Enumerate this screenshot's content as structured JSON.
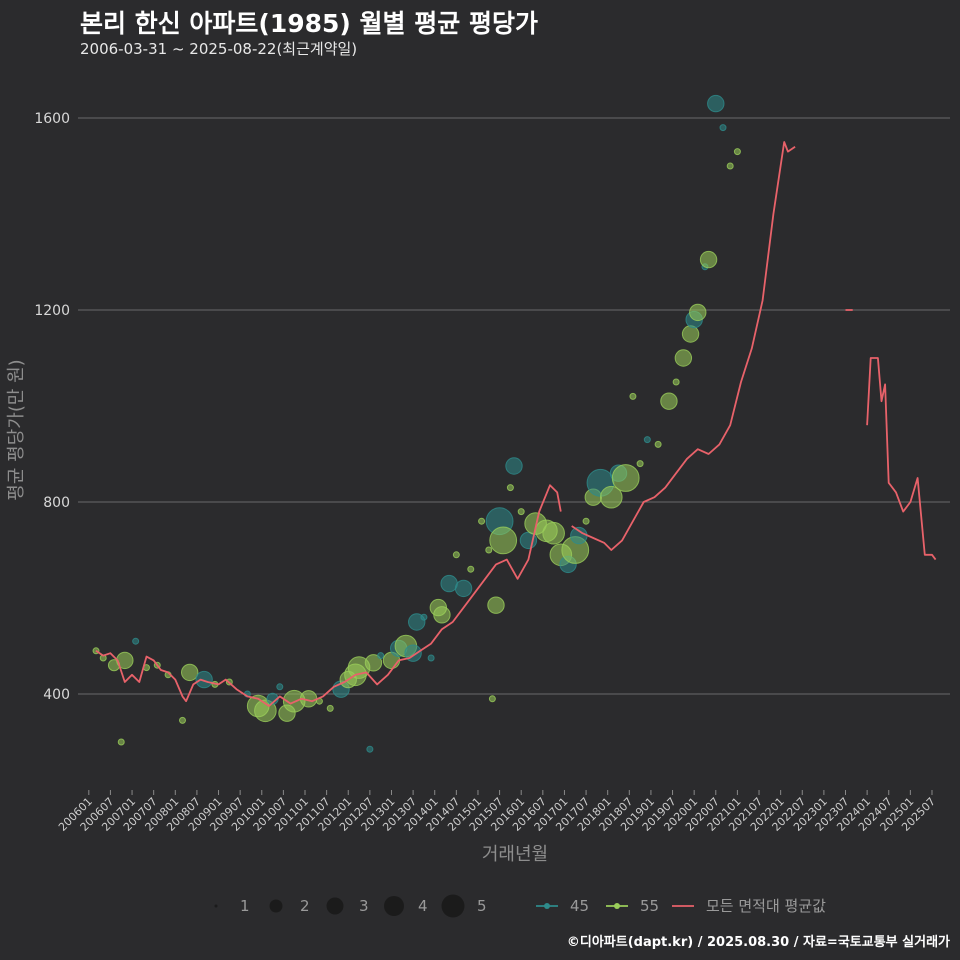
{
  "title": "본리 한신 아파트(1985) 월별 평균 평당가",
  "subtitle": "2006-03-31 ~ 2025-08-22(최근계약일)",
  "footer": "©디아파트(dapt.kr) / 2025.08.30 / 자료=국토교통부 실거래가",
  "colors": {
    "background": "#2b2b2d",
    "grid": "#6a6a6a",
    "series_45": "#2e8b8b",
    "series_55": "#9acd5a",
    "series_avg": "#e8626a"
  },
  "chart_data": {
    "type": "scatter+line",
    "xlabel": "거래년월",
    "ylabel": "평균 평당가(만 원)",
    "ylim": [
      200,
      1700
    ],
    "yticks": [
      400,
      800,
      1200,
      1600
    ],
    "xlim": [
      "2005-10",
      "2025-12"
    ],
    "x_tick_labels": [
      "200601",
      "200607",
      "200701",
      "200707",
      "200801",
      "200807",
      "200901",
      "200907",
      "201001",
      "201007",
      "201101",
      "201107",
      "201201",
      "201207",
      "201301",
      "201307",
      "201401",
      "201407",
      "201501",
      "201507",
      "201601",
      "201607",
      "201701",
      "201707",
      "201801",
      "201807",
      "201901",
      "201907",
      "202001",
      "202007",
      "202101",
      "202107",
      "202201",
      "202207",
      "202301",
      "202307",
      "202401",
      "202407",
      "202501",
      "202507"
    ],
    "legend": {
      "size_title": "",
      "size_labels": [
        "1",
        "2",
        "3",
        "4",
        "5"
      ],
      "series_labels": [
        "45",
        "55",
        "모든 면적대 평균값"
      ]
    },
    "avg_line": [
      {
        "x": "2006-03",
        "y": 490
      },
      {
        "x": "2006-05",
        "y": 480
      },
      {
        "x": "2006-07",
        "y": 485
      },
      {
        "x": "2006-09",
        "y": 470
      },
      {
        "x": "2006-11",
        "y": 425
      },
      {
        "x": "2007-01",
        "y": 440
      },
      {
        "x": "2007-03",
        "y": 425
      },
      {
        "x": "2007-05",
        "y": 478
      },
      {
        "x": "2007-07",
        "y": 470
      },
      {
        "x": "2007-09",
        "y": 450
      },
      {
        "x": "2007-11",
        "y": 445
      },
      {
        "x": "2008-01",
        "y": 430
      },
      {
        "x": "2008-03",
        "y": 395
      },
      {
        "x": "2008-04",
        "y": 385
      },
      {
        "x": "2008-06",
        "y": 420
      },
      {
        "x": "2008-08",
        "y": 430
      },
      {
        "x": "2008-10",
        "y": 425
      },
      {
        "x": "2009-01",
        "y": 420
      },
      {
        "x": "2009-03",
        "y": 430
      },
      {
        "x": "2009-06",
        "y": 410
      },
      {
        "x": "2009-09",
        "y": 395
      },
      {
        "x": "2009-12",
        "y": 390
      },
      {
        "x": "2010-03",
        "y": 375
      },
      {
        "x": "2010-06",
        "y": 395
      },
      {
        "x": "2010-09",
        "y": 380
      },
      {
        "x": "2010-12",
        "y": 390
      },
      {
        "x": "2011-03",
        "y": 385
      },
      {
        "x": "2011-06",
        "y": 395
      },
      {
        "x": "2011-09",
        "y": 415
      },
      {
        "x": "2011-12",
        "y": 425
      },
      {
        "x": "2012-03",
        "y": 440
      },
      {
        "x": "2012-06",
        "y": 445
      },
      {
        "x": "2012-09",
        "y": 420
      },
      {
        "x": "2012-12",
        "y": 440
      },
      {
        "x": "2013-03",
        "y": 470
      },
      {
        "x": "2013-06",
        "y": 475
      },
      {
        "x": "2013-09",
        "y": 490
      },
      {
        "x": "2013-12",
        "y": 505
      },
      {
        "x": "2014-03",
        "y": 535
      },
      {
        "x": "2014-06",
        "y": 550
      },
      {
        "x": "2014-09",
        "y": 580
      },
      {
        "x": "2014-12",
        "y": 610
      },
      {
        "x": "2015-03",
        "y": 640
      },
      {
        "x": "2015-06",
        "y": 670
      },
      {
        "x": "2015-09",
        "y": 680
      },
      {
        "x": "2015-12",
        "y": 640
      },
      {
        "x": "2016-03",
        "y": 680
      },
      {
        "x": "2016-06",
        "y": 780
      },
      {
        "x": "2016-09",
        "y": 835
      },
      {
        "x": "2016-11",
        "y": 820
      },
      {
        "x": "2016-12",
        "y": 780
      },
      {
        "x": "2017-02",
        "y": null
      },
      {
        "x": "2017-03",
        "y": 750
      },
      {
        "x": "2017-06",
        "y": 735
      },
      {
        "x": "2017-09",
        "y": 725
      },
      {
        "x": "2017-12",
        "y": 715
      },
      {
        "x": "2018-02",
        "y": 700
      },
      {
        "x": "2018-05",
        "y": 720
      },
      {
        "x": "2018-08",
        "y": 760
      },
      {
        "x": "2018-11",
        "y": 800
      },
      {
        "x": "2019-02",
        "y": 810
      },
      {
        "x": "2019-05",
        "y": 830
      },
      {
        "x": "2019-08",
        "y": 860
      },
      {
        "x": "2019-11",
        "y": 890
      },
      {
        "x": "2020-02",
        "y": 910
      },
      {
        "x": "2020-05",
        "y": 900
      },
      {
        "x": "2020-08",
        "y": 920
      },
      {
        "x": "2020-11",
        "y": 960
      },
      {
        "x": "2021-02",
        "y": 1050
      },
      {
        "x": "2021-05",
        "y": 1120
      },
      {
        "x": "2021-08",
        "y": 1220
      },
      {
        "x": "2021-11",
        "y": 1400
      },
      {
        "x": "2022-02",
        "y": 1550
      },
      {
        "x": "2022-03",
        "y": 1530
      },
      {
        "x": "2022-05",
        "y": 1540
      },
      {
        "x": "2022-06",
        "y": null
      },
      {
        "x": "2023-07",
        "y": 1200
      },
      {
        "x": "2023-09",
        "y": 1200
      },
      {
        "x": "2023-10",
        "y": null
      },
      {
        "x": "2024-01",
        "y": 960
      },
      {
        "x": "2024-02",
        "y": 1100
      },
      {
        "x": "2024-04",
        "y": 1100
      },
      {
        "x": "2024-05",
        "y": 1010
      },
      {
        "x": "2024-06",
        "y": 1045
      },
      {
        "x": "2024-07",
        "y": 840
      },
      {
        "x": "2024-09",
        "y": 820
      },
      {
        "x": "2024-11",
        "y": 780
      },
      {
        "x": "2025-01",
        "y": 800
      },
      {
        "x": "2025-03",
        "y": 850
      },
      {
        "x": "2025-05",
        "y": 690
      },
      {
        "x": "2025-07",
        "y": 690
      },
      {
        "x": "2025-08",
        "y": 680
      }
    ],
    "points": [
      {
        "x": "2006-03",
        "y": 490,
        "s": 1,
        "a": 55
      },
      {
        "x": "2006-05",
        "y": 475,
        "s": 1,
        "a": 55
      },
      {
        "x": "2006-08",
        "y": 460,
        "s": 2,
        "a": 55
      },
      {
        "x": "2006-10",
        "y": 300,
        "s": 1,
        "a": 55
      },
      {
        "x": "2006-11",
        "y": 470,
        "s": 3,
        "a": 55
      },
      {
        "x": "2007-02",
        "y": 510,
        "s": 1,
        "a": 45
      },
      {
        "x": "2007-05",
        "y": 455,
        "s": 1,
        "a": 55
      },
      {
        "x": "2007-08",
        "y": 460,
        "s": 1,
        "a": 55
      },
      {
        "x": "2007-11",
        "y": 440,
        "s": 1,
        "a": 55
      },
      {
        "x": "2008-03",
        "y": 345,
        "s": 1,
        "a": 55
      },
      {
        "x": "2008-05",
        "y": 445,
        "s": 3,
        "a": 55
      },
      {
        "x": "2008-09",
        "y": 430,
        "s": 3,
        "a": 45
      },
      {
        "x": "2008-12",
        "y": 420,
        "s": 1,
        "a": 55
      },
      {
        "x": "2009-04",
        "y": 425,
        "s": 1,
        "a": 55
      },
      {
        "x": "2009-09",
        "y": 400,
        "s": 1,
        "a": 45
      },
      {
        "x": "2009-12",
        "y": 375,
        "s": 4,
        "a": 55
      },
      {
        "x": "2010-02",
        "y": 365,
        "s": 4,
        "a": 55
      },
      {
        "x": "2010-04",
        "y": 390,
        "s": 2,
        "a": 45
      },
      {
        "x": "2010-06",
        "y": 415,
        "s": 1,
        "a": 45
      },
      {
        "x": "2010-08",
        "y": 360,
        "s": 3,
        "a": 55
      },
      {
        "x": "2010-10",
        "y": 385,
        "s": 4,
        "a": 55
      },
      {
        "x": "2011-02",
        "y": 390,
        "s": 3,
        "a": 55
      },
      {
        "x": "2011-05",
        "y": 385,
        "s": 1,
        "a": 55
      },
      {
        "x": "2011-08",
        "y": 370,
        "s": 1,
        "a": 55
      },
      {
        "x": "2011-11",
        "y": 410,
        "s": 3,
        "a": 45
      },
      {
        "x": "2012-01",
        "y": 430,
        "s": 3,
        "a": 55
      },
      {
        "x": "2012-03",
        "y": 440,
        "s": 4,
        "a": 55
      },
      {
        "x": "2012-04",
        "y": 455,
        "s": 4,
        "a": 55
      },
      {
        "x": "2012-07",
        "y": 285,
        "s": 1,
        "a": 45
      },
      {
        "x": "2012-08",
        "y": 465,
        "s": 3,
        "a": 55
      },
      {
        "x": "2012-10",
        "y": 480,
        "s": 1,
        "a": 45
      },
      {
        "x": "2013-01",
        "y": 470,
        "s": 3,
        "a": 55
      },
      {
        "x": "2013-03",
        "y": 495,
        "s": 3,
        "a": 45
      },
      {
        "x": "2013-05",
        "y": 500,
        "s": 4,
        "a": 55
      },
      {
        "x": "2013-07",
        "y": 485,
        "s": 3,
        "a": 45
      },
      {
        "x": "2013-08",
        "y": 550,
        "s": 3,
        "a": 45
      },
      {
        "x": "2013-10",
        "y": 560,
        "s": 1,
        "a": 45
      },
      {
        "x": "2013-12",
        "y": 475,
        "s": 1,
        "a": 45
      },
      {
        "x": "2014-02",
        "y": 580,
        "s": 3,
        "a": 55
      },
      {
        "x": "2014-03",
        "y": 565,
        "s": 3,
        "a": 55
      },
      {
        "x": "2014-05",
        "y": 630,
        "s": 3,
        "a": 45
      },
      {
        "x": "2014-07",
        "y": 690,
        "s": 1,
        "a": 55
      },
      {
        "x": "2014-09",
        "y": 620,
        "s": 3,
        "a": 45
      },
      {
        "x": "2014-11",
        "y": 660,
        "s": 1,
        "a": 55
      },
      {
        "x": "2015-02",
        "y": 760,
        "s": 1,
        "a": 55
      },
      {
        "x": "2015-04",
        "y": 700,
        "s": 1,
        "a": 55
      },
      {
        "x": "2015-05",
        "y": 390,
        "s": 1,
        "a": 55
      },
      {
        "x": "2015-06",
        "y": 585,
        "s": 3,
        "a": 55
      },
      {
        "x": "2015-07",
        "y": 760,
        "s": 5,
        "a": 45
      },
      {
        "x": "2015-08",
        "y": 720,
        "s": 5,
        "a": 55
      },
      {
        "x": "2015-10",
        "y": 830,
        "s": 1,
        "a": 55
      },
      {
        "x": "2015-11",
        "y": 875,
        "s": 3,
        "a": 45
      },
      {
        "x": "2016-01",
        "y": 780,
        "s": 1,
        "a": 55
      },
      {
        "x": "2016-03",
        "y": 720,
        "s": 3,
        "a": 45
      },
      {
        "x": "2016-05",
        "y": 755,
        "s": 4,
        "a": 55
      },
      {
        "x": "2016-08",
        "y": 740,
        "s": 4,
        "a": 55
      },
      {
        "x": "2016-10",
        "y": 735,
        "s": 4,
        "a": 55
      },
      {
        "x": "2016-12",
        "y": 690,
        "s": 4,
        "a": 55
      },
      {
        "x": "2017-02",
        "y": 670,
        "s": 3,
        "a": 45
      },
      {
        "x": "2017-04",
        "y": 700,
        "s": 5,
        "a": 55
      },
      {
        "x": "2017-05",
        "y": 730,
        "s": 3,
        "a": 45
      },
      {
        "x": "2017-07",
        "y": 760,
        "s": 1,
        "a": 55
      },
      {
        "x": "2017-09",
        "y": 810,
        "s": 3,
        "a": 55
      },
      {
        "x": "2017-11",
        "y": 840,
        "s": 5,
        "a": 45
      },
      {
        "x": "2018-02",
        "y": 810,
        "s": 4,
        "a": 55
      },
      {
        "x": "2018-04",
        "y": 860,
        "s": 3,
        "a": 45
      },
      {
        "x": "2018-06",
        "y": 850,
        "s": 5,
        "a": 55
      },
      {
        "x": "2018-08",
        "y": 1020,
        "s": 1,
        "a": 55
      },
      {
        "x": "2018-10",
        "y": 880,
        "s": 1,
        "a": 55
      },
      {
        "x": "2018-12",
        "y": 930,
        "s": 1,
        "a": 45
      },
      {
        "x": "2019-03",
        "y": 920,
        "s": 1,
        "a": 55
      },
      {
        "x": "2019-06",
        "y": 1010,
        "s": 3,
        "a": 55
      },
      {
        "x": "2019-08",
        "y": 1050,
        "s": 1,
        "a": 55
      },
      {
        "x": "2019-10",
        "y": 1100,
        "s": 3,
        "a": 55
      },
      {
        "x": "2019-12",
        "y": 1150,
        "s": 3,
        "a": 55
      },
      {
        "x": "2020-01",
        "y": 1180,
        "s": 3,
        "a": 45
      },
      {
        "x": "2020-02",
        "y": 1195,
        "s": 3,
        "a": 55
      },
      {
        "x": "2020-04",
        "y": 1290,
        "s": 1,
        "a": 45
      },
      {
        "x": "2020-05",
        "y": 1305,
        "s": 3,
        "a": 55
      },
      {
        "x": "2020-07",
        "y": 1630,
        "s": 3,
        "a": 45
      },
      {
        "x": "2020-09",
        "y": 1580,
        "s": 1,
        "a": 45
      },
      {
        "x": "2020-11",
        "y": 1500,
        "s": 1,
        "a": 55
      },
      {
        "x": "2021-01",
        "y": 1530,
        "s": 1,
        "a": 55
      }
    ]
  }
}
